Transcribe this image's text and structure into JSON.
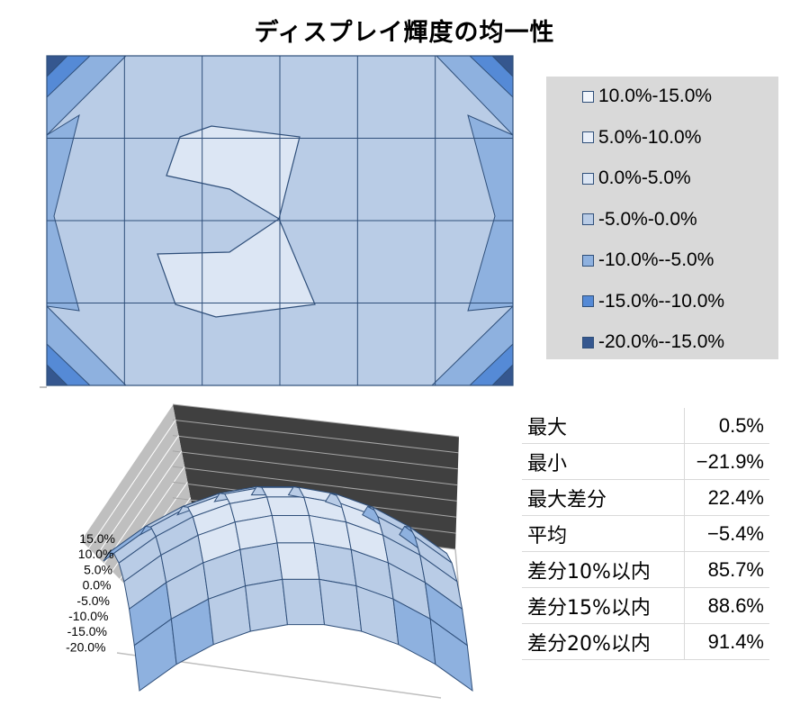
{
  "title": "ディスプレイ輝度の均一性",
  "colors": {
    "band_10_15": "#f2f6fc",
    "band_5_10": "#e9eff9",
    "band_0_5": "#dce6f4",
    "band_m5_0": "#b9cce6",
    "band_m10_m5": "#8eb1df",
    "band_m15_m10": "#558ad6",
    "band_m20_m15": "#35578f",
    "outline": "#2f4f7a"
  },
  "chart_data": [
    {
      "type": "contour",
      "grid_cols": 6,
      "grid_rows": 4,
      "legend": [
        {
          "label": "10.0%-15.0%",
          "color": "#f2f6fc"
        },
        {
          "label": "5.0%-10.0%",
          "color": "#e9eff9"
        },
        {
          "label": "0.0%-5.0%",
          "color": "#dce6f4"
        },
        {
          "label": "-5.0%-0.0%",
          "color": "#b9cce6"
        },
        {
          "label": "-10.0%--5.0%",
          "color": "#8eb1df"
        },
        {
          "label": "-15.0%--10.0%",
          "color": "#558ad6"
        },
        {
          "label": "-20.0%--15.0%",
          "color": "#35578f"
        }
      ],
      "legend_position": "right"
    },
    {
      "type": "surface",
      "z_ticks": [
        "15.0%",
        "10.0%",
        "5.0%",
        "0.0%",
        "-5.0%",
        "-10.0%",
        "-15.0%",
        "-20.0%"
      ],
      "z_range": [
        -20,
        15
      ]
    }
  ],
  "stats": [
    {
      "label": "最大",
      "value": "0.5%"
    },
    {
      "label": "最小",
      "value": "−21.9%"
    },
    {
      "label": "最大差分",
      "value": "22.4%"
    },
    {
      "label": "平均",
      "value": "−5.4%"
    },
    {
      "label": "差分10%以内",
      "value": "85.7%"
    },
    {
      "label": "差分15%以内",
      "value": "88.6%"
    },
    {
      "label": "差分20%以内",
      "value": "91.4%"
    }
  ]
}
